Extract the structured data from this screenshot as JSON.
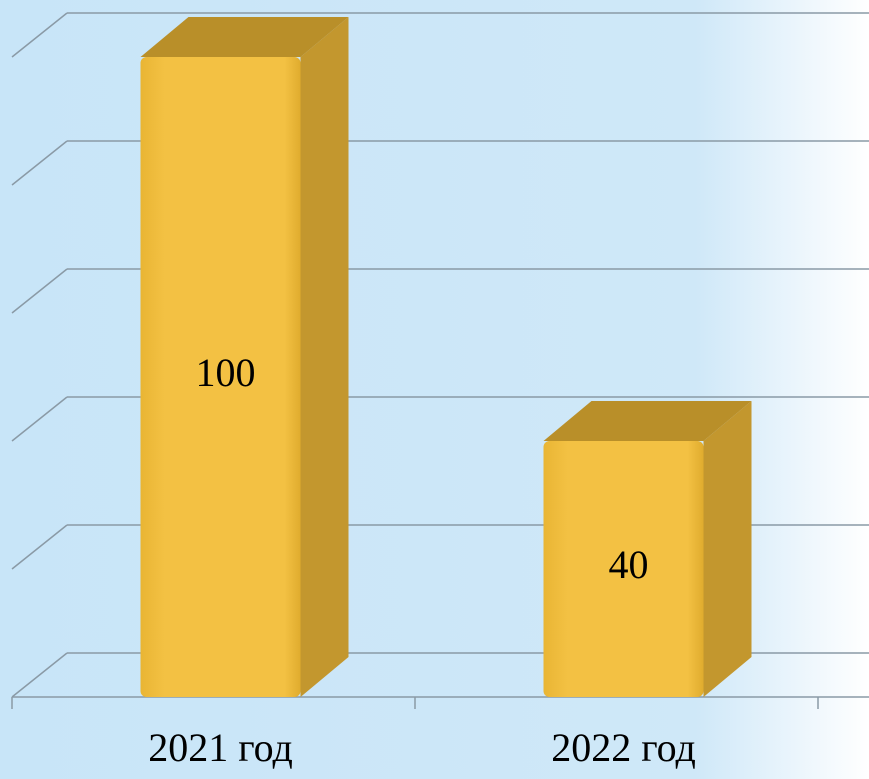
{
  "chart_data": {
    "type": "bar3d",
    "categories": [
      "2021 год",
      "2022 год"
    ],
    "values": [
      100,
      40
    ],
    "color": "#f1bd3d",
    "ylim": [
      0,
      100
    ],
    "yticks": [
      0,
      20,
      40,
      60,
      80,
      100
    ],
    "grid": true
  }
}
